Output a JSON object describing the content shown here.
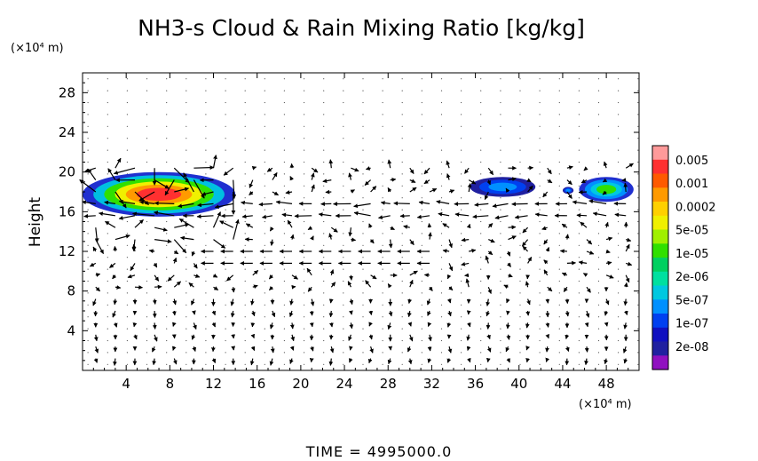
{
  "chart_data": {
    "type": "heatmap",
    "title": "NH3-s Cloud & Rain Mixing Ratio [kg/kg]",
    "ylabel": "Height",
    "y_unit": "(×10⁴ m)",
    "x_unit": "(×10⁴ m)",
    "xlim": [
      0,
      51
    ],
    "ylim": [
      0,
      30
    ],
    "x_ticks": [
      "4",
      "8",
      "12",
      "16",
      "20",
      "24",
      "28",
      "32",
      "36",
      "40",
      "44",
      "48"
    ],
    "y_ticks": [
      "4",
      "8",
      "12",
      "16",
      "20",
      "24",
      "28"
    ],
    "colorbar": {
      "labels": [
        "0.005",
        "0.001",
        "0.0002",
        "5e-05",
        "1e-05",
        "2e-06",
        "5e-07",
        "1e-07",
        "2e-08"
      ],
      "colors": [
        "#ff9a9a",
        "#ff3030",
        "#ff5a00",
        "#ff9a00",
        "#ffd000",
        "#f0f000",
        "#a0f000",
        "#30e000",
        "#00d060",
        "#00e0a0",
        "#00c8e0",
        "#0090ff",
        "#0040f0",
        "#1010c0",
        "#2020a0",
        "#9010c0"
      ]
    },
    "cloud_regions": [
      {
        "x_range": [
          0,
          14
        ],
        "y_range": [
          15.5,
          20
        ],
        "level": "high"
      },
      {
        "x_range": [
          35.5,
          41.5
        ],
        "y_range": [
          17.5,
          19.5
        ],
        "level": "low"
      },
      {
        "x_range": [
          44,
          45
        ],
        "y_range": [
          17.8,
          18.5
        ],
        "level": "low"
      },
      {
        "x_range": [
          45.5,
          50.5
        ],
        "y_range": [
          17,
          19.5
        ],
        "level": "mid"
      }
    ],
    "wind_vectors_overlay": true
  },
  "footer": {
    "time_text": "TIME = 4995000.0"
  }
}
